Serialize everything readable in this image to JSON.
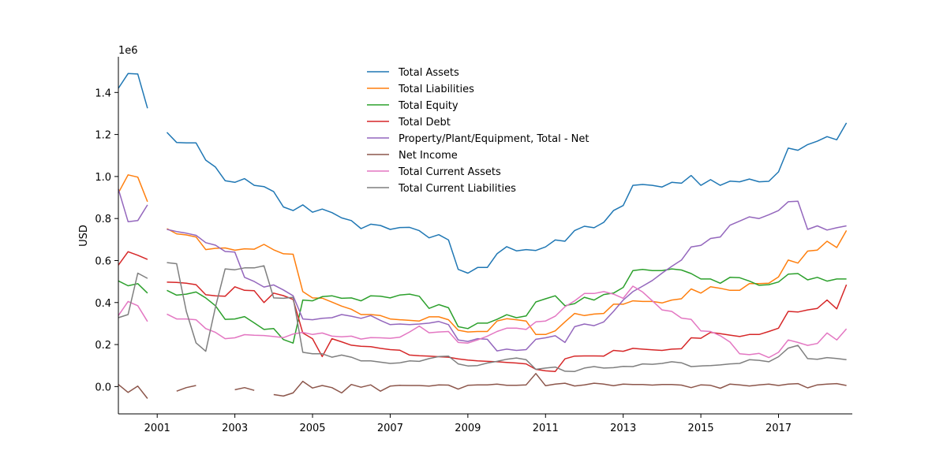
{
  "chart_data": {
    "type": "line",
    "ylabel": "USD",
    "y_multiplier_label": "1e6",
    "xlim": [
      2000.0,
      2018.9
    ],
    "ylim": [
      -130000,
      1570000
    ],
    "x_ticks": [
      2001,
      2003,
      2005,
      2007,
      2009,
      2011,
      2013,
      2015,
      2017
    ],
    "y_ticks": [
      0.0,
      0.2,
      0.4,
      0.6,
      0.8,
      1.0,
      1.2,
      1.4
    ],
    "legend_position": "top-center",
    "start_year": 2000.0,
    "step_years": 0.25,
    "series": [
      {
        "name": "Total Assets",
        "color": "#1f77b4",
        "values": [
          1420000,
          1490000,
          1488000,
          1325000,
          null,
          1210000,
          1162000,
          1160000,
          1160000,
          1078000,
          1045000,
          980000,
          972000,
          990000,
          958000,
          952000,
          928000,
          855000,
          838000,
          865000,
          830000,
          845000,
          828000,
          803000,
          790000,
          752000,
          773000,
          767000,
          748000,
          757000,
          758000,
          742000,
          708000,
          723000,
          698000,
          558000,
          540000,
          567000,
          567000,
          632000,
          666000,
          646000,
          652000,
          648000,
          665000,
          698000,
          692000,
          743000,
          763000,
          756000,
          782000,
          838000,
          862000,
          958000,
          962000,
          958000,
          950000,
          972000,
          968000,
          1005000,
          958000,
          985000,
          958000,
          978000,
          975000,
          988000,
          975000,
          977000,
          1022000,
          1135000,
          1125000,
          1152000,
          1168000,
          1190000,
          1175000,
          1255000
        ]
      },
      {
        "name": "Total Liabilities",
        "color": "#ff7f0e",
        "values": [
          922000,
          1008000,
          997000,
          880000,
          null,
          752000,
          727000,
          722000,
          712000,
          652000,
          658000,
          660000,
          649000,
          656000,
          654000,
          677000,
          651000,
          632000,
          630000,
          452000,
          422000,
          421000,
          402000,
          383000,
          368000,
          343000,
          343000,
          338000,
          322000,
          318000,
          315000,
          312000,
          332000,
          332000,
          318000,
          268000,
          260000,
          262000,
          262000,
          312000,
          323000,
          318000,
          312000,
          248000,
          248000,
          265000,
          308000,
          348000,
          338000,
          345000,
          348000,
          392000,
          392000,
          408000,
          405000,
          405000,
          398000,
          412000,
          418000,
          465000,
          445000,
          475000,
          468000,
          458000,
          458000,
          490000,
          490000,
          492000,
          522000,
          602000,
          588000,
          645000,
          650000,
          692000,
          662000,
          743000
        ]
      },
      {
        "name": "Total Equity",
        "color": "#2ca02c",
        "values": [
          503000,
          480000,
          490000,
          445000,
          null,
          458000,
          435000,
          440000,
          450000,
          422000,
          385000,
          320000,
          322000,
          333000,
          303000,
          272000,
          276000,
          224000,
          207000,
          412000,
          408000,
          428000,
          432000,
          420000,
          422000,
          408000,
          432000,
          430000,
          422000,
          436000,
          440000,
          430000,
          372000,
          390000,
          375000,
          285000,
          276000,
          302000,
          302000,
          320000,
          342000,
          328000,
          336000,
          403000,
          418000,
          432000,
          385000,
          395000,
          425000,
          412000,
          438000,
          445000,
          472000,
          552000,
          558000,
          552000,
          552000,
          560000,
          555000,
          538000,
          512000,
          512000,
          492000,
          520000,
          518000,
          502000,
          482000,
          485000,
          498000,
          535000,
          538000,
          508000,
          520000,
          502000,
          512000,
          512000
        ]
      },
      {
        "name": "Total Debt",
        "color": "#d62728",
        "values": [
          578000,
          642000,
          625000,
          605000,
          null,
          497000,
          496000,
          492000,
          485000,
          437000,
          432000,
          430000,
          475000,
          458000,
          456000,
          400000,
          445000,
          433000,
          415000,
          255000,
          228000,
          143000,
          228000,
          213000,
          197000,
          192000,
          190000,
          182000,
          176000,
          173000,
          150000,
          147000,
          145000,
          142000,
          140000,
          132000,
          126000,
          122000,
          120000,
          118000,
          115000,
          112000,
          108000,
          82000,
          75000,
          72000,
          132000,
          145000,
          146000,
          146000,
          145000,
          172000,
          168000,
          182000,
          178000,
          175000,
          172000,
          178000,
          180000,
          232000,
          230000,
          258000,
          252000,
          245000,
          238000,
          248000,
          248000,
          262000,
          278000,
          358000,
          355000,
          365000,
          372000,
          412000,
          370000,
          485000
        ]
      },
      {
        "name": "Property/Plant/Equipment, Total - Net",
        "color": "#9467bd",
        "values": [
          940000,
          785000,
          790000,
          865000,
          null,
          748000,
          738000,
          730000,
          720000,
          685000,
          673000,
          643000,
          640000,
          520000,
          500000,
          474000,
          484000,
          460000,
          432000,
          322000,
          318000,
          325000,
          328000,
          343000,
          335000,
          325000,
          338000,
          315000,
          295000,
          298000,
          295000,
          298000,
          302000,
          310000,
          295000,
          222000,
          215000,
          228000,
          225000,
          170000,
          178000,
          172000,
          176000,
          225000,
          232000,
          242000,
          210000,
          285000,
          298000,
          290000,
          308000,
          358000,
          412000,
          452000,
          478000,
          505000,
          540000,
          572000,
          602000,
          665000,
          672000,
          705000,
          712000,
          768000,
          788000,
          808000,
          800000,
          818000,
          838000,
          880000,
          882000,
          748000,
          765000,
          745000,
          756000,
          765000
        ]
      },
      {
        "name": "Net Income",
        "color": "#8c564b",
        "values": [
          10000,
          -28000,
          2000,
          -57000,
          null,
          null,
          -22000,
          -5000,
          5000,
          null,
          null,
          null,
          -15000,
          -5000,
          -18000,
          null,
          -38000,
          -45000,
          -30000,
          25000,
          -7000,
          5000,
          -5000,
          -30000,
          10000,
          -3000,
          8000,
          -22000,
          2000,
          6000,
          5000,
          5000,
          2000,
          8000,
          7000,
          -12000,
          6000,
          8000,
          8000,
          12000,
          6000,
          6000,
          8000,
          62000,
          4000,
          12000,
          16000,
          3000,
          8000,
          16000,
          12000,
          4000,
          12000,
          10000,
          10000,
          7000,
          10000,
          10000,
          7000,
          -5000,
          8000,
          6000,
          -8000,
          12000,
          8000,
          3000,
          8000,
          12000,
          5000,
          12000,
          14000,
          -6000,
          8000,
          12000,
          14000,
          5000
        ]
      },
      {
        "name": "Total Current Assets",
        "color": "#e377c2",
        "values": [
          338000,
          405000,
          385000,
          310000,
          null,
          345000,
          322000,
          322000,
          318000,
          276000,
          258000,
          228000,
          232000,
          247000,
          244000,
          243000,
          238000,
          233000,
          250000,
          258000,
          248000,
          255000,
          240000,
          237000,
          240000,
          226000,
          233000,
          232000,
          230000,
          235000,
          260000,
          288000,
          256000,
          260000,
          262000,
          210000,
          207000,
          222000,
          240000,
          262000,
          278000,
          278000,
          272000,
          308000,
          312000,
          335000,
          380000,
          408000,
          443000,
          443000,
          452000,
          440000,
          420000,
          478000,
          450000,
          408000,
          365000,
          358000,
          326000,
          320000,
          265000,
          262000,
          242000,
          212000,
          156000,
          152000,
          158000,
          138000,
          163000,
          222000,
          210000,
          196000,
          205000,
          255000,
          222000,
          275000
        ]
      },
      {
        "name": "Total Current Liabilities",
        "color": "#7f7f7f",
        "values": [
          328000,
          343000,
          540000,
          515000,
          null,
          590000,
          585000,
          358000,
          208000,
          168000,
          378000,
          560000,
          556000,
          565000,
          565000,
          575000,
          422000,
          420000,
          425000,
          163000,
          156000,
          156000,
          140000,
          150000,
          140000,
          122000,
          122000,
          116000,
          110000,
          113000,
          122000,
          120000,
          133000,
          143000,
          145000,
          108000,
          98000,
          100000,
          112000,
          120000,
          130000,
          136000,
          128000,
          82000,
          88000,
          93000,
          73000,
          72000,
          88000,
          95000,
          88000,
          90000,
          96000,
          95000,
          108000,
          106000,
          110000,
          118000,
          113000,
          95000,
          98000,
          100000,
          103000,
          108000,
          110000,
          128000,
          125000,
          118000,
          142000,
          183000,
          196000,
          133000,
          130000,
          138000,
          134000,
          128000
        ]
      }
    ]
  }
}
